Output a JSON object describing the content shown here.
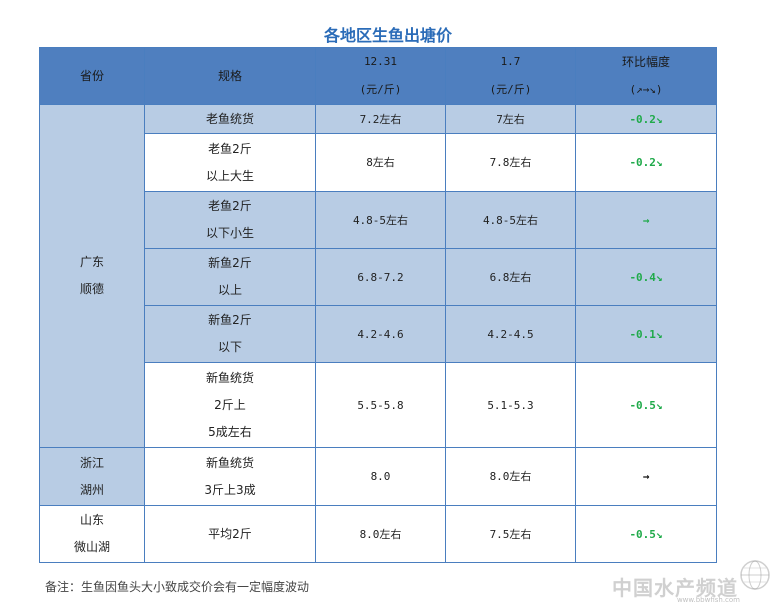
{
  "title": "各地区生鱼出塘价",
  "header": {
    "province": "省份",
    "spec": "规格",
    "date1_line1": "12.31",
    "date1_line2": "(元/斤)",
    "date2_line1": "1.7",
    "date2_line2": "(元/斤)",
    "change_line1": "环比幅度",
    "change_line2": "(↗→↘)"
  },
  "groups": [
    {
      "province_lines": [
        "广东",
        "顺德"
      ],
      "rows": [
        {
          "spec_lines": [
            "老鱼统货"
          ],
          "p1": "7.2左右",
          "p2": "7左右",
          "change": "-0.2↘"
        },
        {
          "spec_lines": [
            "老鱼2斤",
            "以上大生"
          ],
          "p1": "8左右",
          "p2": "7.8左右",
          "change": "-0.2↘"
        },
        {
          "spec_lines": [
            "老鱼2斤",
            "以下小生"
          ],
          "p1": "4.8-5左右",
          "p2": "4.8-5左右",
          "change": "→"
        },
        {
          "spec_lines": [
            "新鱼2斤",
            "以上"
          ],
          "p1": "6.8-7.2",
          "p2": "6.8左右",
          "change": "-0.4↘"
        },
        {
          "spec_lines": [
            "新鱼2斤",
            "以下"
          ],
          "p1": "4.2-4.6",
          "p2": "4.2-4.5",
          "change": "-0.1↘"
        },
        {
          "spec_lines": [
            "新鱼统货",
            "2斤上",
            "5成左右"
          ],
          "p1": "5.5-5.8",
          "p2": "5.1-5.3",
          "change": "-0.5↘"
        }
      ]
    },
    {
      "province_lines": [
        "浙江",
        "湖州"
      ],
      "rows": [
        {
          "spec_lines": [
            "新鱼统货",
            "3斤上3成"
          ],
          "p1": "8.0",
          "p2": "8.0左右",
          "change": "→"
        }
      ]
    },
    {
      "province_lines": [
        "山东",
        "微山湖"
      ],
      "rows": [
        {
          "spec_lines": [
            "平均2斤"
          ],
          "p1": "8.0左右",
          "p2": "7.5左右",
          "change": "-0.5↘"
        }
      ]
    }
  ],
  "note": "备注：生鱼因鱼头大小致成交价会有一定幅度波动",
  "watermark": {
    "name": "中国水产频道",
    "url": "www.bbwfish.com",
    "icon": "globe-icon"
  },
  "colors": {
    "header_bg": "#4f7fbf",
    "shade_bg": "#b8cce4",
    "title": "#2b6cb8",
    "down": "#1faa4a"
  }
}
